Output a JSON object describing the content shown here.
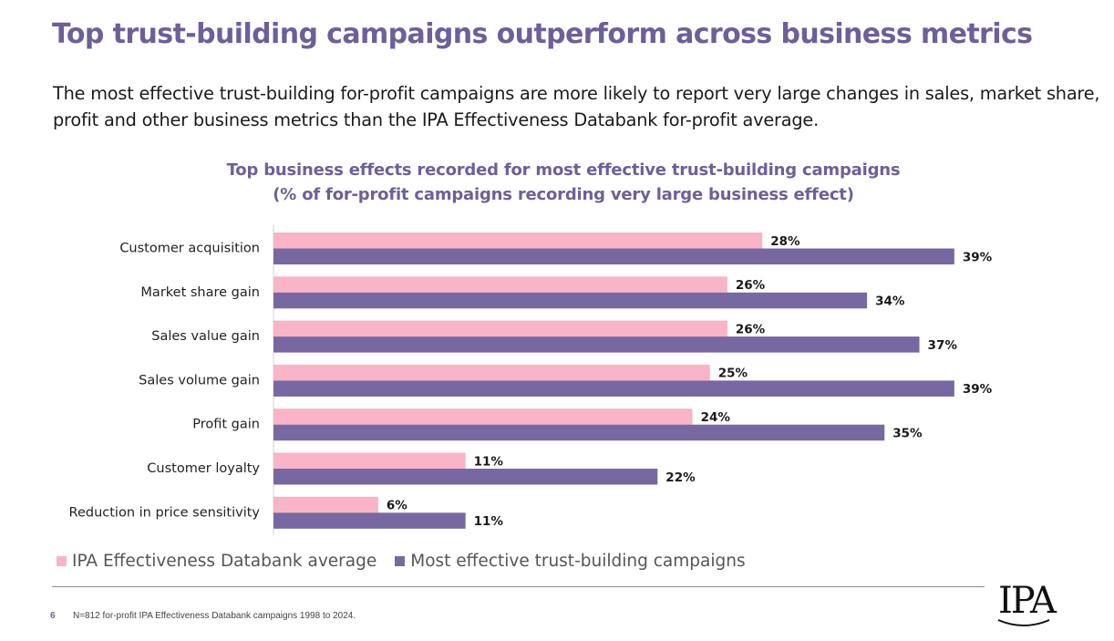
{
  "page": {
    "title": "Top trust-building campaigns outperform across business metrics",
    "subtitle": "The most effective trust-building for-profit campaigns are more likely to report very large changes in sales, market share, profit and other business metrics than the IPA Effectiveness Databank for-profit average.",
    "footnote": "N=812 for-profit IPA Effectiveness Databank campaigns 1998 to 2024.",
    "page_number": "6",
    "logo_text": "IPA"
  },
  "colors": {
    "accent": "#6e5f98",
    "series_1": "#f9b4c7",
    "series_2": "#7868a2"
  },
  "chart_data": {
    "type": "bar",
    "orientation": "horizontal",
    "title_line1": "Top business effects recorded for most effective trust-building campaigns",
    "title_line2": "(% of for-profit campaigns recording very large business effect)",
    "categories": [
      "Customer acquisition",
      "Market share gain",
      "Sales value gain",
      "Sales volume gain",
      "Profit gain",
      "Customer loyalty",
      "Reduction in price sensitivity"
    ],
    "series": [
      {
        "name": "IPA Effectiveness Databank average",
        "values": [
          28,
          26,
          26,
          25,
          24,
          11,
          6
        ]
      },
      {
        "name": "Most effective trust-building campaigns",
        "values": [
          39,
          34,
          37,
          39,
          35,
          22,
          11
        ]
      }
    ],
    "value_suffix": "%",
    "xlim": [
      0,
      40
    ],
    "grid": false,
    "legend_position": "bottom-left"
  }
}
